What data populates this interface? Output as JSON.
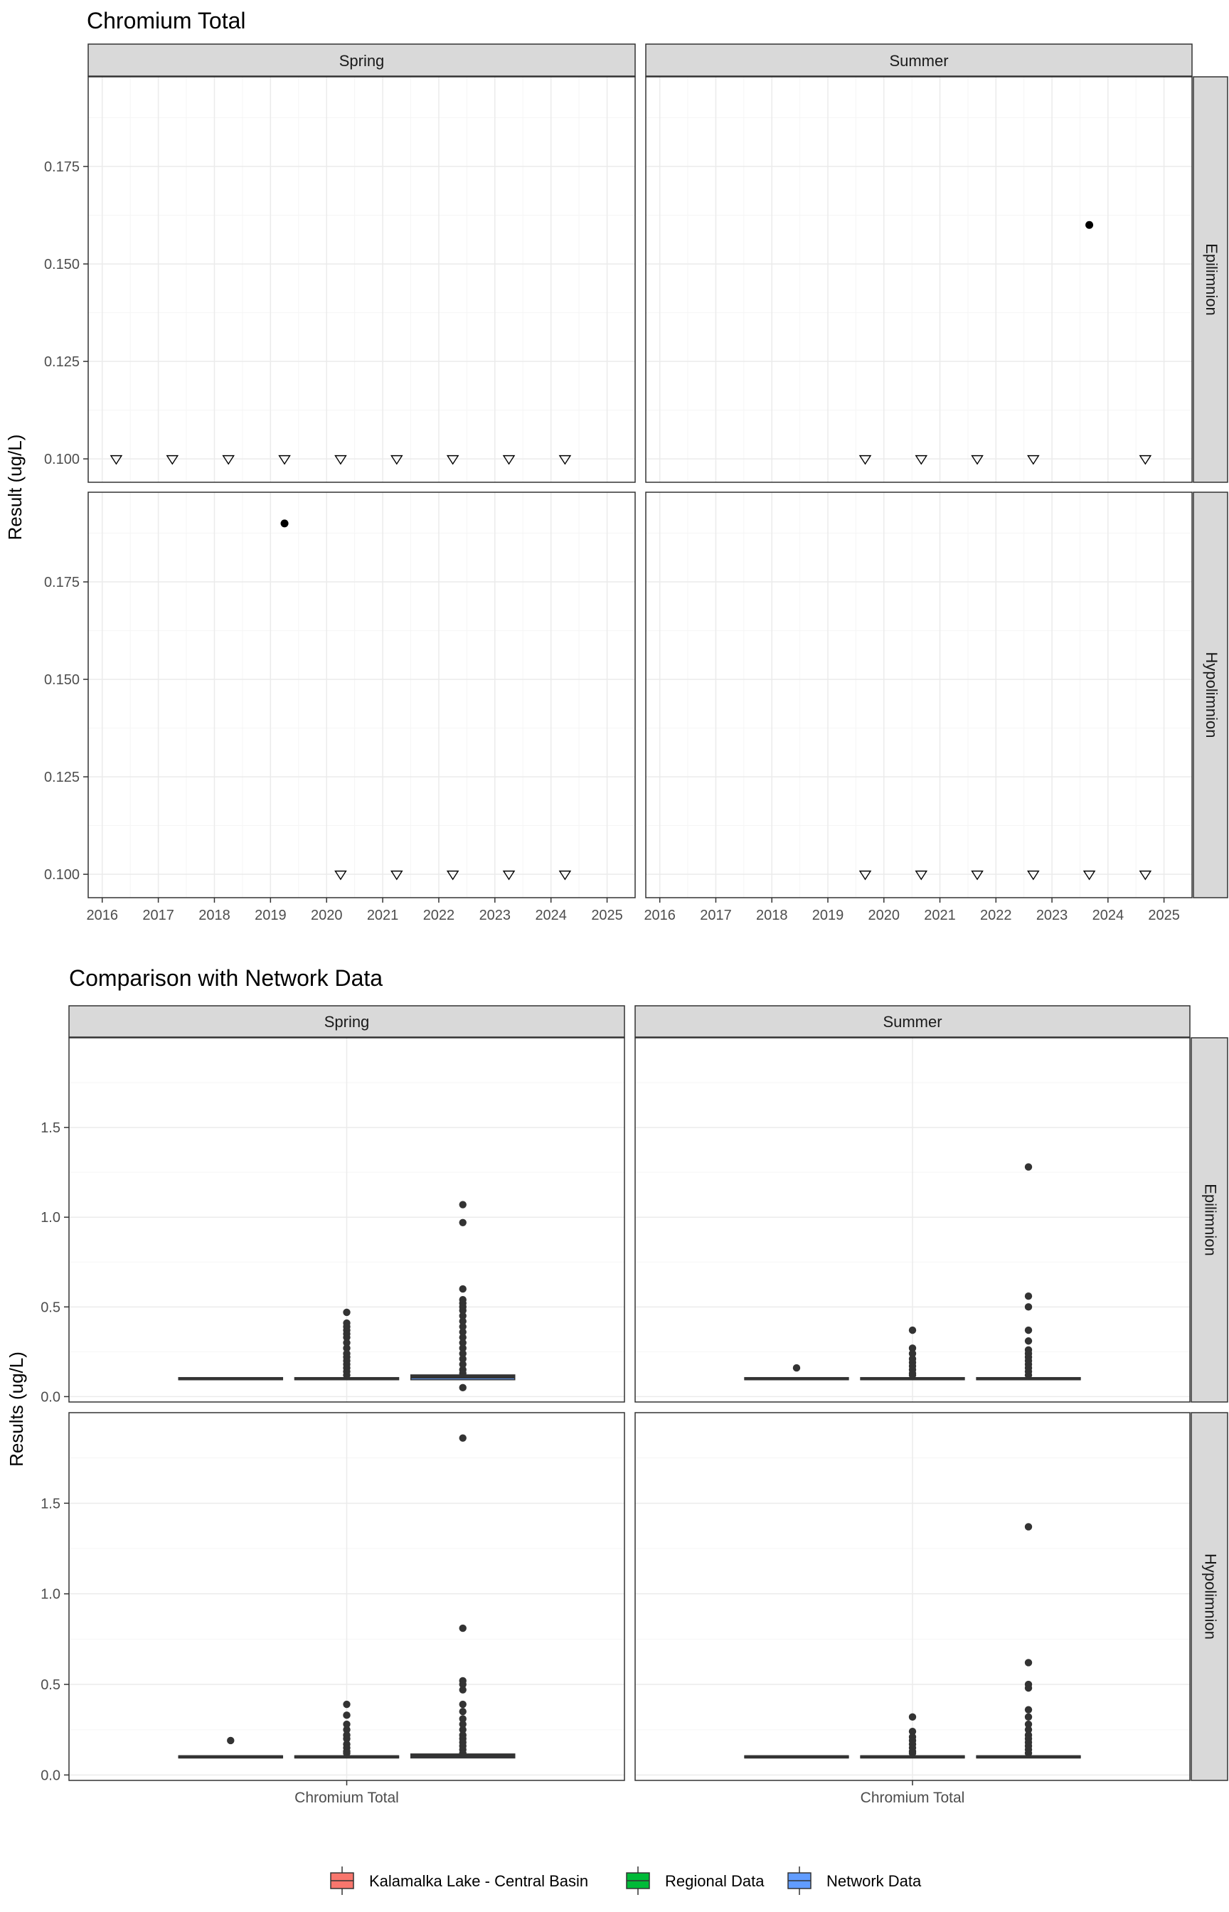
{
  "colors": {
    "panel_border": "#333333",
    "strip_fill": "#d9d9d9",
    "grid_major": "#ebebeb",
    "grid_minor": "#f5f5f5",
    "point": "#000000",
    "box": "#333333",
    "kalamalka": "#f8766d",
    "regional": "#00ba38",
    "network": "#619cff"
  },
  "chart_data": [
    {
      "type": "scatter",
      "title": "Chromium Total",
      "ylabel": "Result (ug/L)",
      "xlabel": "",
      "x_ticks": [
        "2016",
        "2017",
        "2018",
        "2019",
        "2020",
        "2021",
        "2022",
        "2023",
        "2024",
        "2025"
      ],
      "y_ticks": [
        "0.100",
        "0.125",
        "0.150",
        "0.175"
      ],
      "ylim": [
        0.094,
        0.198
      ],
      "xlim": [
        "2015-10",
        "2025-07"
      ],
      "columns": [
        "Spring",
        "Summer"
      ],
      "rows": [
        "Epilimnion",
        "Hypolimnion"
      ],
      "grid": true,
      "marker_legend": {
        "detected": "filled circle",
        "below_detection_limit": "open triangle"
      },
      "panels": [
        {
          "season": "Spring",
          "layer": "Epilimnion",
          "points": [],
          "below_detection": [
            "2016-04",
            "2017-04",
            "2018-04",
            "2019-04",
            "2020-04",
            "2021-04",
            "2022-04",
            "2023-04",
            "2024-04"
          ],
          "below_detection_value": 0.1
        },
        {
          "season": "Summer",
          "layer": "Epilimnion",
          "points": [
            {
              "date": "2023-09",
              "value": 0.16
            }
          ],
          "below_detection": [
            "2019-09",
            "2020-09",
            "2021-09",
            "2022-09",
            "2024-09"
          ],
          "below_detection_value": 0.1
        },
        {
          "season": "Spring",
          "layer": "Hypolimnion",
          "points": [
            {
              "date": "2019-04",
              "value": 0.19
            }
          ],
          "below_detection": [
            "2020-04",
            "2021-04",
            "2022-04",
            "2023-04",
            "2024-04"
          ],
          "below_detection_value": 0.1
        },
        {
          "season": "Summer",
          "layer": "Hypolimnion",
          "points": [],
          "below_detection": [
            "2019-09",
            "2020-09",
            "2021-09",
            "2022-09",
            "2023-09",
            "2024-09"
          ],
          "below_detection_value": 0.1
        }
      ]
    },
    {
      "type": "box",
      "title": "Comparison with Network Data",
      "ylabel": "Results (ug/L)",
      "xlabel": "",
      "category": "Chromium Total",
      "y_ticks": [
        "0.0",
        "0.5",
        "1.0",
        "1.5"
      ],
      "ylim": [
        -0.03,
        2.0
      ],
      "columns": [
        "Spring",
        "Summer"
      ],
      "rows": [
        "Epilimnion",
        "Hypolimnion"
      ],
      "grid": true,
      "legend": {
        "position": "bottom",
        "items": [
          "Kalamalka Lake - Central Basin",
          "Regional Data",
          "Network Data"
        ]
      },
      "panels": [
        {
          "season": "Spring",
          "layer": "Epilimnion",
          "groups": [
            {
              "name": "Kalamalka Lake - Central Basin",
              "q1": 0.1,
              "median": 0.1,
              "q3": 0.1,
              "outliers": []
            },
            {
              "name": "Regional Data",
              "q1": 0.1,
              "median": 0.1,
              "q3": 0.1,
              "outliers": [
                0.47,
                0.41,
                0.39,
                0.37,
                0.35,
                0.33,
                0.3,
                0.27,
                0.24,
                0.22,
                0.2,
                0.18,
                0.16,
                0.14,
                0.12
              ]
            },
            {
              "name": "Network Data",
              "q1": 0.1,
              "median": 0.11,
              "q3": 0.115,
              "outliers": [
                1.07,
                0.97,
                0.6,
                0.54,
                0.52,
                0.5,
                0.48,
                0.45,
                0.42,
                0.39,
                0.36,
                0.33,
                0.3,
                0.27,
                0.24,
                0.21,
                0.18,
                0.15,
                0.13,
                0.05
              ]
            }
          ]
        },
        {
          "season": "Summer",
          "layer": "Epilimnion",
          "groups": [
            {
              "name": "Kalamalka Lake - Central Basin",
              "q1": 0.1,
              "median": 0.1,
              "q3": 0.1,
              "outliers": [
                0.16
              ]
            },
            {
              "name": "Regional Data",
              "q1": 0.1,
              "median": 0.1,
              "q3": 0.1,
              "outliers": [
                0.37,
                0.27,
                0.24,
                0.21,
                0.19,
                0.17,
                0.15,
                0.13,
                0.12
              ]
            },
            {
              "name": "Network Data",
              "q1": 0.1,
              "median": 0.1,
              "q3": 0.1,
              "outliers": [
                1.28,
                0.56,
                0.5,
                0.37,
                0.31,
                0.26,
                0.24,
                0.22,
                0.2,
                0.18,
                0.16,
                0.14,
                0.12
              ]
            }
          ]
        },
        {
          "season": "Spring",
          "layer": "Hypolimnion",
          "groups": [
            {
              "name": "Kalamalka Lake - Central Basin",
              "q1": 0.1,
              "median": 0.1,
              "q3": 0.1,
              "outliers": [
                0.19
              ]
            },
            {
              "name": "Regional Data",
              "q1": 0.1,
              "median": 0.1,
              "q3": 0.1,
              "outliers": [
                0.39,
                0.33,
                0.28,
                0.25,
                0.22,
                0.2,
                0.17,
                0.15,
                0.13,
                0.12
              ]
            },
            {
              "name": "Network Data",
              "q1": 0.1,
              "median": 0.105,
              "q3": 0.11,
              "outliers": [
                1.86,
                0.81,
                0.52,
                0.5,
                0.47,
                0.39,
                0.35,
                0.31,
                0.28,
                0.25,
                0.22,
                0.2,
                0.18,
                0.16,
                0.14,
                0.12
              ]
            }
          ]
        },
        {
          "season": "Summer",
          "layer": "Hypolimnion",
          "groups": [
            {
              "name": "Kalamalka Lake - Central Basin",
              "q1": 0.1,
              "median": 0.1,
              "q3": 0.1,
              "outliers": []
            },
            {
              "name": "Regional Data",
              "q1": 0.1,
              "median": 0.1,
              "q3": 0.1,
              "outliers": [
                0.32,
                0.24,
                0.21,
                0.19,
                0.17,
                0.15,
                0.13,
                0.12
              ]
            },
            {
              "name": "Network Data",
              "q1": 0.1,
              "median": 0.1,
              "q3": 0.1,
              "outliers": [
                1.37,
                0.62,
                0.5,
                0.48,
                0.36,
                0.32,
                0.28,
                0.25,
                0.22,
                0.2,
                0.18,
                0.16,
                0.14,
                0.12
              ]
            }
          ]
        }
      ]
    }
  ]
}
